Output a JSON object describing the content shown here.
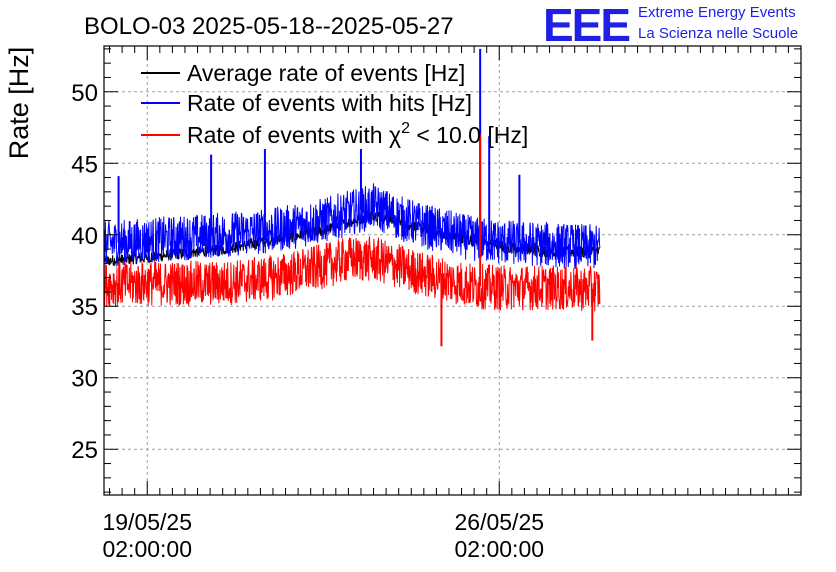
{
  "header": {
    "title": "BOLO-03 2025-05-18--2025-05-27",
    "logo_text": "EEE",
    "logo_line1": "Extreme Energy Events",
    "logo_line2": "La Scienza nelle Scuole"
  },
  "chart_data": {
    "type": "line",
    "title": "BOLO-03 2025-05-18--2025-05-27",
    "ylabel": "Rate [Hz]",
    "xlabel": "",
    "ylim": [
      21.8,
      53.2
    ],
    "xlim": [
      -0.86,
      13.0
    ],
    "yticks": [
      25,
      30,
      35,
      40,
      45,
      50
    ],
    "grid": true,
    "legend_position": "top-left",
    "x_ticks": [
      {
        "x": 0.0,
        "date": "19/05/25",
        "time": "02:00:00"
      },
      {
        "x": 7.0,
        "date": "26/05/25",
        "time": "02:00:00"
      }
    ],
    "x_unit": "days since 19/05/25 02:00:00",
    "series": [
      {
        "name": "Average rate of events [Hz]",
        "label_main": "Average rate of events [Hz]",
        "color": "#000000",
        "base": [
          [
            -1.1,
            38.1
          ],
          [
            0.0,
            38.4
          ],
          [
            1.5,
            39.0
          ],
          [
            2.5,
            39.6
          ],
          [
            3.5,
            40.3
          ],
          [
            4.5,
            41.4
          ],
          [
            5.5,
            40.4
          ],
          [
            6.5,
            39.6
          ],
          [
            7.0,
            39.2
          ],
          [
            8.0,
            38.8
          ],
          [
            9.0,
            38.8
          ],
          [
            9.0,
            38.8
          ],
          [
            9.0,
            38.7
          ]
        ],
        "spikes": []
      },
      {
        "name": "Rate of events with hits [Hz]",
        "label_main": "Rate of events with hits [Hz]",
        "color": "#0000ff",
        "band_halfwidth": 1.6,
        "base": [
          [
            -1.1,
            39.3
          ],
          [
            0.0,
            39.6
          ],
          [
            1.5,
            40.0
          ],
          [
            2.5,
            40.3
          ],
          [
            3.5,
            41.0
          ],
          [
            4.0,
            41.5
          ],
          [
            4.5,
            42.0
          ],
          [
            5.0,
            41.2
          ],
          [
            5.5,
            40.6
          ],
          [
            6.5,
            39.7
          ],
          [
            7.0,
            39.5
          ],
          [
            8.0,
            39.3
          ],
          [
            9.0,
            39.1
          ],
          [
            9.0,
            38.8
          ]
        ],
        "spikes": [
          [
            -0.57,
            44.1
          ],
          [
            1.27,
            45.6
          ],
          [
            2.34,
            46.0
          ],
          [
            4.25,
            46.0
          ],
          [
            6.62,
            53.0
          ],
          [
            6.8,
            46.9
          ],
          [
            7.4,
            44.2
          ]
        ]
      },
      {
        "name": "Rate of events with χ² < 10.0 [Hz]",
        "label_main": "Rate of events with χ",
        "label_sup": "2",
        "label_tail": " < 10.0 [Hz]",
        "color": "#ff0000",
        "band_halfwidth": 1.6,
        "base": [
          [
            -1.1,
            36.5
          ],
          [
            0.0,
            36.6
          ],
          [
            1.5,
            36.6
          ],
          [
            2.5,
            37.0
          ],
          [
            3.5,
            37.8
          ],
          [
            4.0,
            38.3
          ],
          [
            4.5,
            38.3
          ],
          [
            5.0,
            37.8
          ],
          [
            5.5,
            37.2
          ],
          [
            6.5,
            36.4
          ],
          [
            7.0,
            36.3
          ],
          [
            8.0,
            36.3
          ],
          [
            9.0,
            36.2
          ],
          [
            9.0,
            36.0
          ]
        ],
        "spikes": [
          [
            6.62,
            47.0
          ],
          [
            5.85,
            32.2
          ],
          [
            8.85,
            32.6
          ]
        ]
      }
    ]
  }
}
